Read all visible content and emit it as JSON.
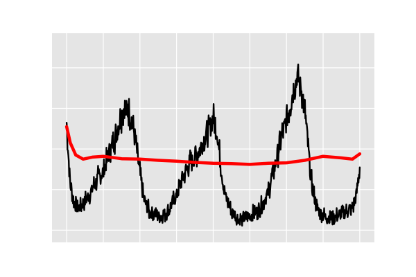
{
  "chart_data": {
    "type": "line",
    "title": "",
    "xlabel": "",
    "ylabel": "",
    "xlim": [
      -0.4,
      8.4
    ],
    "ylim": [
      -0.3,
      4.85
    ],
    "x_ticks": [
      0,
      1,
      2,
      3,
      4,
      5,
      6,
      7,
      8
    ],
    "y_ticks": [
      0,
      1,
      2,
      3,
      4,
      5
    ],
    "tick_labels_shown": false,
    "grid": true,
    "background": "#e5e5e5",
    "grid_color": "#ffffff",
    "series": [
      {
        "color": "#000000",
        "style": "noisy",
        "values": [
          [
            0.0,
            2.65
          ],
          [
            0.05,
            1.8
          ],
          [
            0.1,
            1.1
          ],
          [
            0.2,
            0.7
          ],
          [
            0.3,
            0.55
          ],
          [
            0.45,
            0.65
          ],
          [
            0.6,
            0.85
          ],
          [
            0.8,
            1.2
          ],
          [
            1.0,
            1.45
          ],
          [
            1.2,
            1.95
          ],
          [
            1.4,
            2.55
          ],
          [
            1.55,
            3.0
          ],
          [
            1.7,
            2.95
          ],
          [
            1.85,
            2.4
          ],
          [
            2.0,
            1.4
          ],
          [
            2.1,
            0.8
          ],
          [
            2.25,
            0.45
          ],
          [
            2.4,
            0.4
          ],
          [
            2.6,
            0.35
          ],
          [
            2.8,
            0.5
          ],
          [
            3.0,
            0.85
          ],
          [
            3.2,
            1.35
          ],
          [
            3.4,
            1.7
          ],
          [
            3.6,
            1.95
          ],
          [
            3.8,
            2.3
          ],
          [
            4.0,
            2.75
          ],
          [
            4.1,
            2.45
          ],
          [
            4.2,
            1.65
          ],
          [
            4.3,
            0.95
          ],
          [
            4.5,
            0.45
          ],
          [
            4.7,
            0.25
          ],
          [
            4.9,
            0.3
          ],
          [
            5.1,
            0.4
          ],
          [
            5.3,
            0.55
          ],
          [
            5.5,
            0.95
          ],
          [
            5.7,
            1.65
          ],
          [
            5.85,
            2.25
          ],
          [
            6.0,
            2.7
          ],
          [
            6.15,
            3.3
          ],
          [
            6.3,
            3.8
          ],
          [
            6.4,
            3.5
          ],
          [
            6.5,
            2.95
          ],
          [
            6.6,
            1.95
          ],
          [
            6.7,
            1.05
          ],
          [
            6.85,
            0.5
          ],
          [
            7.0,
            0.35
          ],
          [
            7.2,
            0.3
          ],
          [
            7.4,
            0.35
          ],
          [
            7.6,
            0.45
          ],
          [
            7.8,
            0.55
          ],
          [
            7.9,
            0.8
          ],
          [
            7.95,
            1.2
          ],
          [
            8.0,
            1.55
          ]
        ],
        "noise": [
          0.13,
          0.24,
          0.3,
          0.18,
          0.22,
          0.35,
          0.26,
          0.2,
          0.32,
          0.28,
          0.15,
          0.33,
          0.21,
          0.27,
          0.19,
          0.36,
          0.24,
          0.3,
          0.17,
          0.29
        ]
      },
      {
        "color": "#ff0000",
        "style": "smooth",
        "values": [
          [
            0.0,
            2.55
          ],
          [
            0.1,
            2.15
          ],
          [
            0.25,
            1.85
          ],
          [
            0.45,
            1.75
          ],
          [
            0.7,
            1.8
          ],
          [
            1.0,
            1.82
          ],
          [
            1.5,
            1.76
          ],
          [
            2.0,
            1.75
          ],
          [
            2.5,
            1.72
          ],
          [
            3.0,
            1.7
          ],
          [
            3.5,
            1.67
          ],
          [
            4.0,
            1.65
          ],
          [
            4.5,
            1.64
          ],
          [
            5.0,
            1.62
          ],
          [
            5.5,
            1.65
          ],
          [
            6.0,
            1.66
          ],
          [
            6.5,
            1.72
          ],
          [
            7.0,
            1.82
          ],
          [
            7.5,
            1.78
          ],
          [
            7.8,
            1.75
          ],
          [
            8.0,
            1.88
          ]
        ]
      }
    ]
  }
}
